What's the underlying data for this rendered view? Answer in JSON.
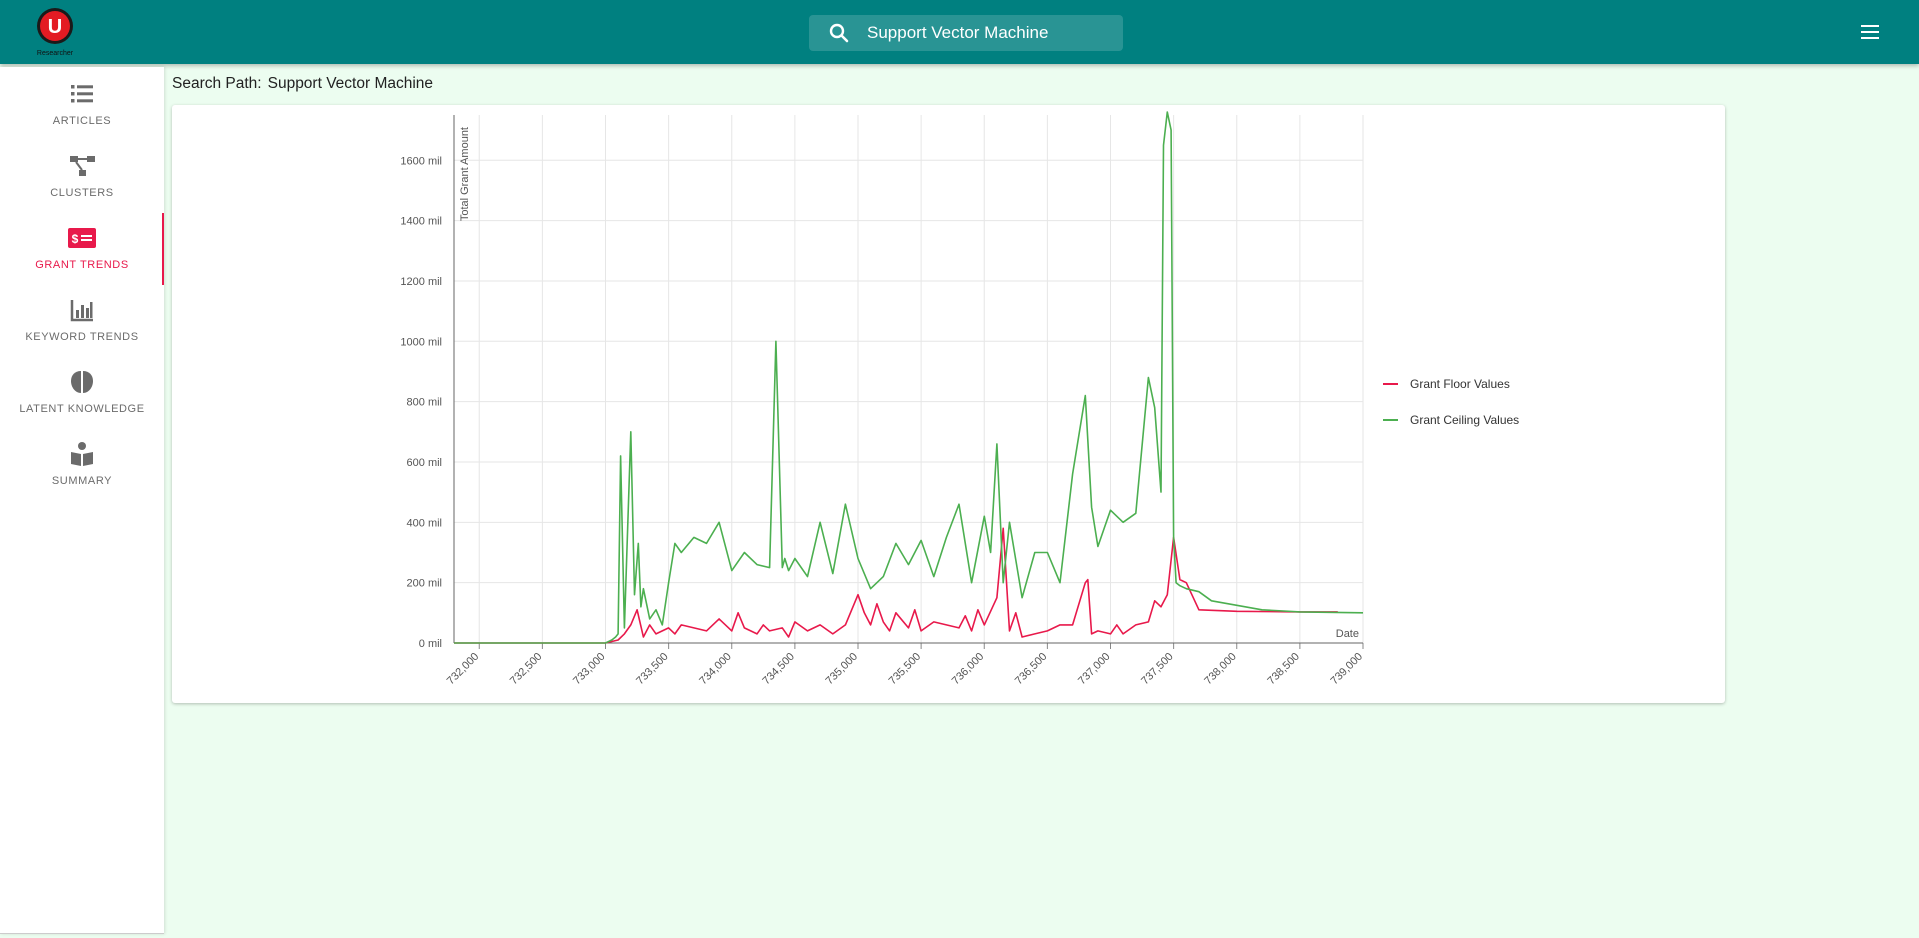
{
  "app": {
    "logo_text": "Researcher",
    "search_value": "Support Vector Machine"
  },
  "sidebar": {
    "items": [
      {
        "label": "ARTICLES",
        "icon": "list-icon",
        "active": false
      },
      {
        "label": "CLUSTERS",
        "icon": "cluster-icon",
        "active": false
      },
      {
        "label": "GRANT TRENDS",
        "icon": "dollar-icon",
        "active": true
      },
      {
        "label": "KEYWORD TRENDS",
        "icon": "bar-chart-icon",
        "active": false
      },
      {
        "label": "LATENT KNOWLEDGE",
        "icon": "brain-icon",
        "active": false
      },
      {
        "label": "SUMMARY",
        "icon": "book-reader-icon",
        "active": false
      }
    ]
  },
  "main": {
    "search_path_label": "Search Path:",
    "search_path_value": "Support Vector Machine"
  },
  "colors": {
    "topbar": "#008080",
    "accent": "#e8194b",
    "floor_series": "#e8194b",
    "ceiling_series": "#4caf50",
    "background": "#ecfdf0"
  },
  "chart_data": {
    "type": "line",
    "title": "",
    "xlabel": "Date",
    "ylabel": "Total Grant Amount",
    "xlim": [
      731800,
      739000
    ],
    "ylim": [
      0,
      1750
    ],
    "x_ticks": [
      732000,
      732500,
      733000,
      733500,
      734000,
      734500,
      735000,
      735500,
      736000,
      736500,
      737000,
      737500,
      738000,
      738500,
      739000
    ],
    "x_tick_labels": [
      "732,000",
      "732,500",
      "733,000",
      "733,500",
      "734,000",
      "734,500",
      "735,000",
      "735,500",
      "736,000",
      "736,500",
      "737,000",
      "737,500",
      "738,000",
      "738,500",
      "739,000"
    ],
    "y_ticks": [
      0,
      200,
      400,
      600,
      800,
      1000,
      1200,
      1400,
      1600
    ],
    "y_tick_labels": [
      "0 mil",
      "200 mil",
      "400 mil",
      "600 mil",
      "800 mil",
      "1000 mil",
      "1200 mil",
      "1400 mil",
      "1600 mil"
    ],
    "grid": true,
    "legend_position": "right",
    "series": [
      {
        "name": "Grant Floor Values",
        "color": "#e8194b",
        "x": [
          731800,
          733000,
          733050,
          733100,
          733150,
          733200,
          733250,
          733300,
          733350,
          733400,
          733500,
          733550,
          733600,
          733700,
          733800,
          733900,
          734000,
          734050,
          734100,
          734200,
          734250,
          734300,
          734400,
          734450,
          734500,
          734600,
          734700,
          734800,
          734900,
          735000,
          735050,
          735100,
          735150,
          735200,
          735250,
          735300,
          735400,
          735450,
          735500,
          735600,
          735700,
          735800,
          735850,
          735900,
          735950,
          736000,
          736100,
          736150,
          736200,
          736250,
          736300,
          736400,
          736500,
          736600,
          736700,
          736800,
          736820,
          736850,
          736900,
          737000,
          737050,
          737100,
          737200,
          737300,
          737350,
          737400,
          737450,
          737500,
          737550,
          737600,
          737700,
          738000,
          738500,
          738800
        ],
        "y": [
          0,
          0,
          5,
          10,
          30,
          60,
          110,
          20,
          60,
          30,
          50,
          30,
          60,
          50,
          40,
          80,
          40,
          100,
          50,
          30,
          60,
          40,
          50,
          20,
          70,
          40,
          60,
          30,
          60,
          160,
          100,
          60,
          130,
          70,
          40,
          100,
          50,
          110,
          40,
          70,
          60,
          50,
          90,
          40,
          110,
          60,
          150,
          380,
          40,
          100,
          20,
          30,
          40,
          60,
          60,
          200,
          210,
          30,
          40,
          30,
          60,
          30,
          60,
          70,
          140,
          120,
          160,
          350,
          210,
          200,
          110,
          105,
          103,
          103
        ]
      },
      {
        "name": "Grant Ceiling Values",
        "color": "#4caf50",
        "x": [
          731800,
          733000,
          733050,
          733080,
          733100,
          733120,
          733150,
          733200,
          733230,
          733260,
          733280,
          733300,
          733350,
          733400,
          733450,
          733500,
          733550,
          733600,
          733700,
          733800,
          733900,
          734000,
          734100,
          734200,
          734300,
          734350,
          734400,
          734420,
          734450,
          734500,
          734600,
          734700,
          734800,
          734900,
          735000,
          735100,
          735200,
          735300,
          735400,
          735500,
          735600,
          735700,
          735800,
          735900,
          736000,
          736050,
          736100,
          736150,
          736200,
          736300,
          736400,
          736500,
          736600,
          736700,
          736800,
          736850,
          736900,
          736950,
          737000,
          737100,
          737200,
          737300,
          737350,
          737400,
          737420,
          737450,
          737480,
          737500,
          737520,
          737550,
          737600,
          737700,
          737800,
          738000,
          738200,
          738500,
          739000
        ],
        "y": [
          0,
          0,
          10,
          20,
          30,
          620,
          50,
          700,
          160,
          330,
          120,
          180,
          80,
          110,
          60,
          200,
          330,
          300,
          350,
          330,
          400,
          240,
          300,
          260,
          250,
          1000,
          250,
          280,
          240,
          280,
          220,
          400,
          230,
          460,
          280,
          180,
          220,
          330,
          260,
          340,
          220,
          350,
          460,
          200,
          420,
          300,
          660,
          200,
          400,
          150,
          300,
          300,
          200,
          560,
          820,
          450,
          320,
          380,
          440,
          400,
          430,
          880,
          780,
          500,
          1650,
          1760,
          1700,
          350,
          200,
          190,
          180,
          170,
          140,
          125,
          110,
          103,
          100
        ]
      }
    ]
  }
}
